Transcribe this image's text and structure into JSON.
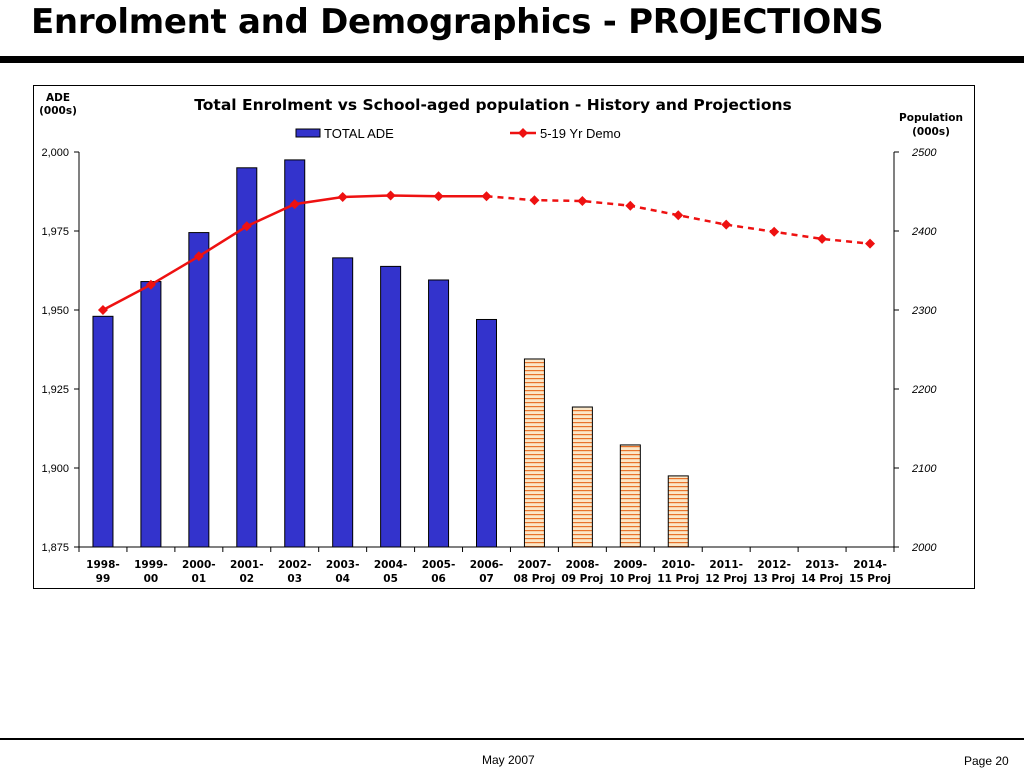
{
  "slide": {
    "title": "Enrolment and Demographics - PROJECTIONS",
    "footer_date": "May 2007",
    "footer_page": "Page 20"
  },
  "colors": {
    "history_bar": "#3333cc",
    "projection_bar_fill": "#fbe7c8",
    "projection_bar_stripe": "#e8732b",
    "demo_line": "#ee1111"
  },
  "chart_data": {
    "type": "bar",
    "title": "Total Enrolment vs School-aged population - History and Projections",
    "y_left_label": [
      "ADE",
      "(000s)"
    ],
    "y_right_label": [
      "Population",
      "(000s)"
    ],
    "y_left_lim": [
      1875,
      2000
    ],
    "y_left_ticks": [
      "1,875",
      "1,900",
      "1,925",
      "1,950",
      "1,975",
      "2,000"
    ],
    "y_right_lim": [
      2000,
      2500
    ],
    "y_right_ticks": [
      "2000",
      "2100",
      "2200",
      "2300",
      "2400",
      "2500"
    ],
    "categories": [
      [
        "1998-",
        "99"
      ],
      [
        "1999-",
        "00"
      ],
      [
        "2000-",
        "01"
      ],
      [
        "2001-",
        "02"
      ],
      [
        "2002-",
        "03"
      ],
      [
        "2003-",
        "04"
      ],
      [
        "2004-",
        "05"
      ],
      [
        "2005-",
        "06"
      ],
      [
        "2006-",
        "07"
      ],
      [
        "2007-",
        "08 Proj"
      ],
      [
        "2008-",
        "09 Proj"
      ],
      [
        "2009-",
        "10 Proj"
      ],
      [
        "2010-",
        "11 Proj"
      ],
      [
        "2011-",
        "12 Proj"
      ],
      [
        "2012-",
        "13 Proj"
      ],
      [
        "2013-",
        "14 Proj"
      ],
      [
        "2014-",
        "15 Proj"
      ]
    ],
    "legend_position": "top",
    "series": [
      {
        "name": "TOTAL ADE",
        "axis": "left",
        "type": "bar",
        "values": [
          1948,
          1959,
          1974.5,
          1995,
          1997.5,
          1966.5,
          1963.8,
          1959.5,
          1947,
          1934.5,
          1919.3,
          1907.3,
          1897.5,
          null,
          null,
          null,
          null
        ],
        "projected_from_index": 9
      },
      {
        "name": "5-19 Yr Demo",
        "axis": "right",
        "type": "line",
        "values": [
          2300,
          2332,
          2368,
          2406,
          2434,
          2443,
          2445,
          2444,
          2444,
          2439,
          2438,
          2432,
          2420,
          2408,
          2399,
          2390,
          2384
        ],
        "projected_from_index": 8
      }
    ]
  }
}
